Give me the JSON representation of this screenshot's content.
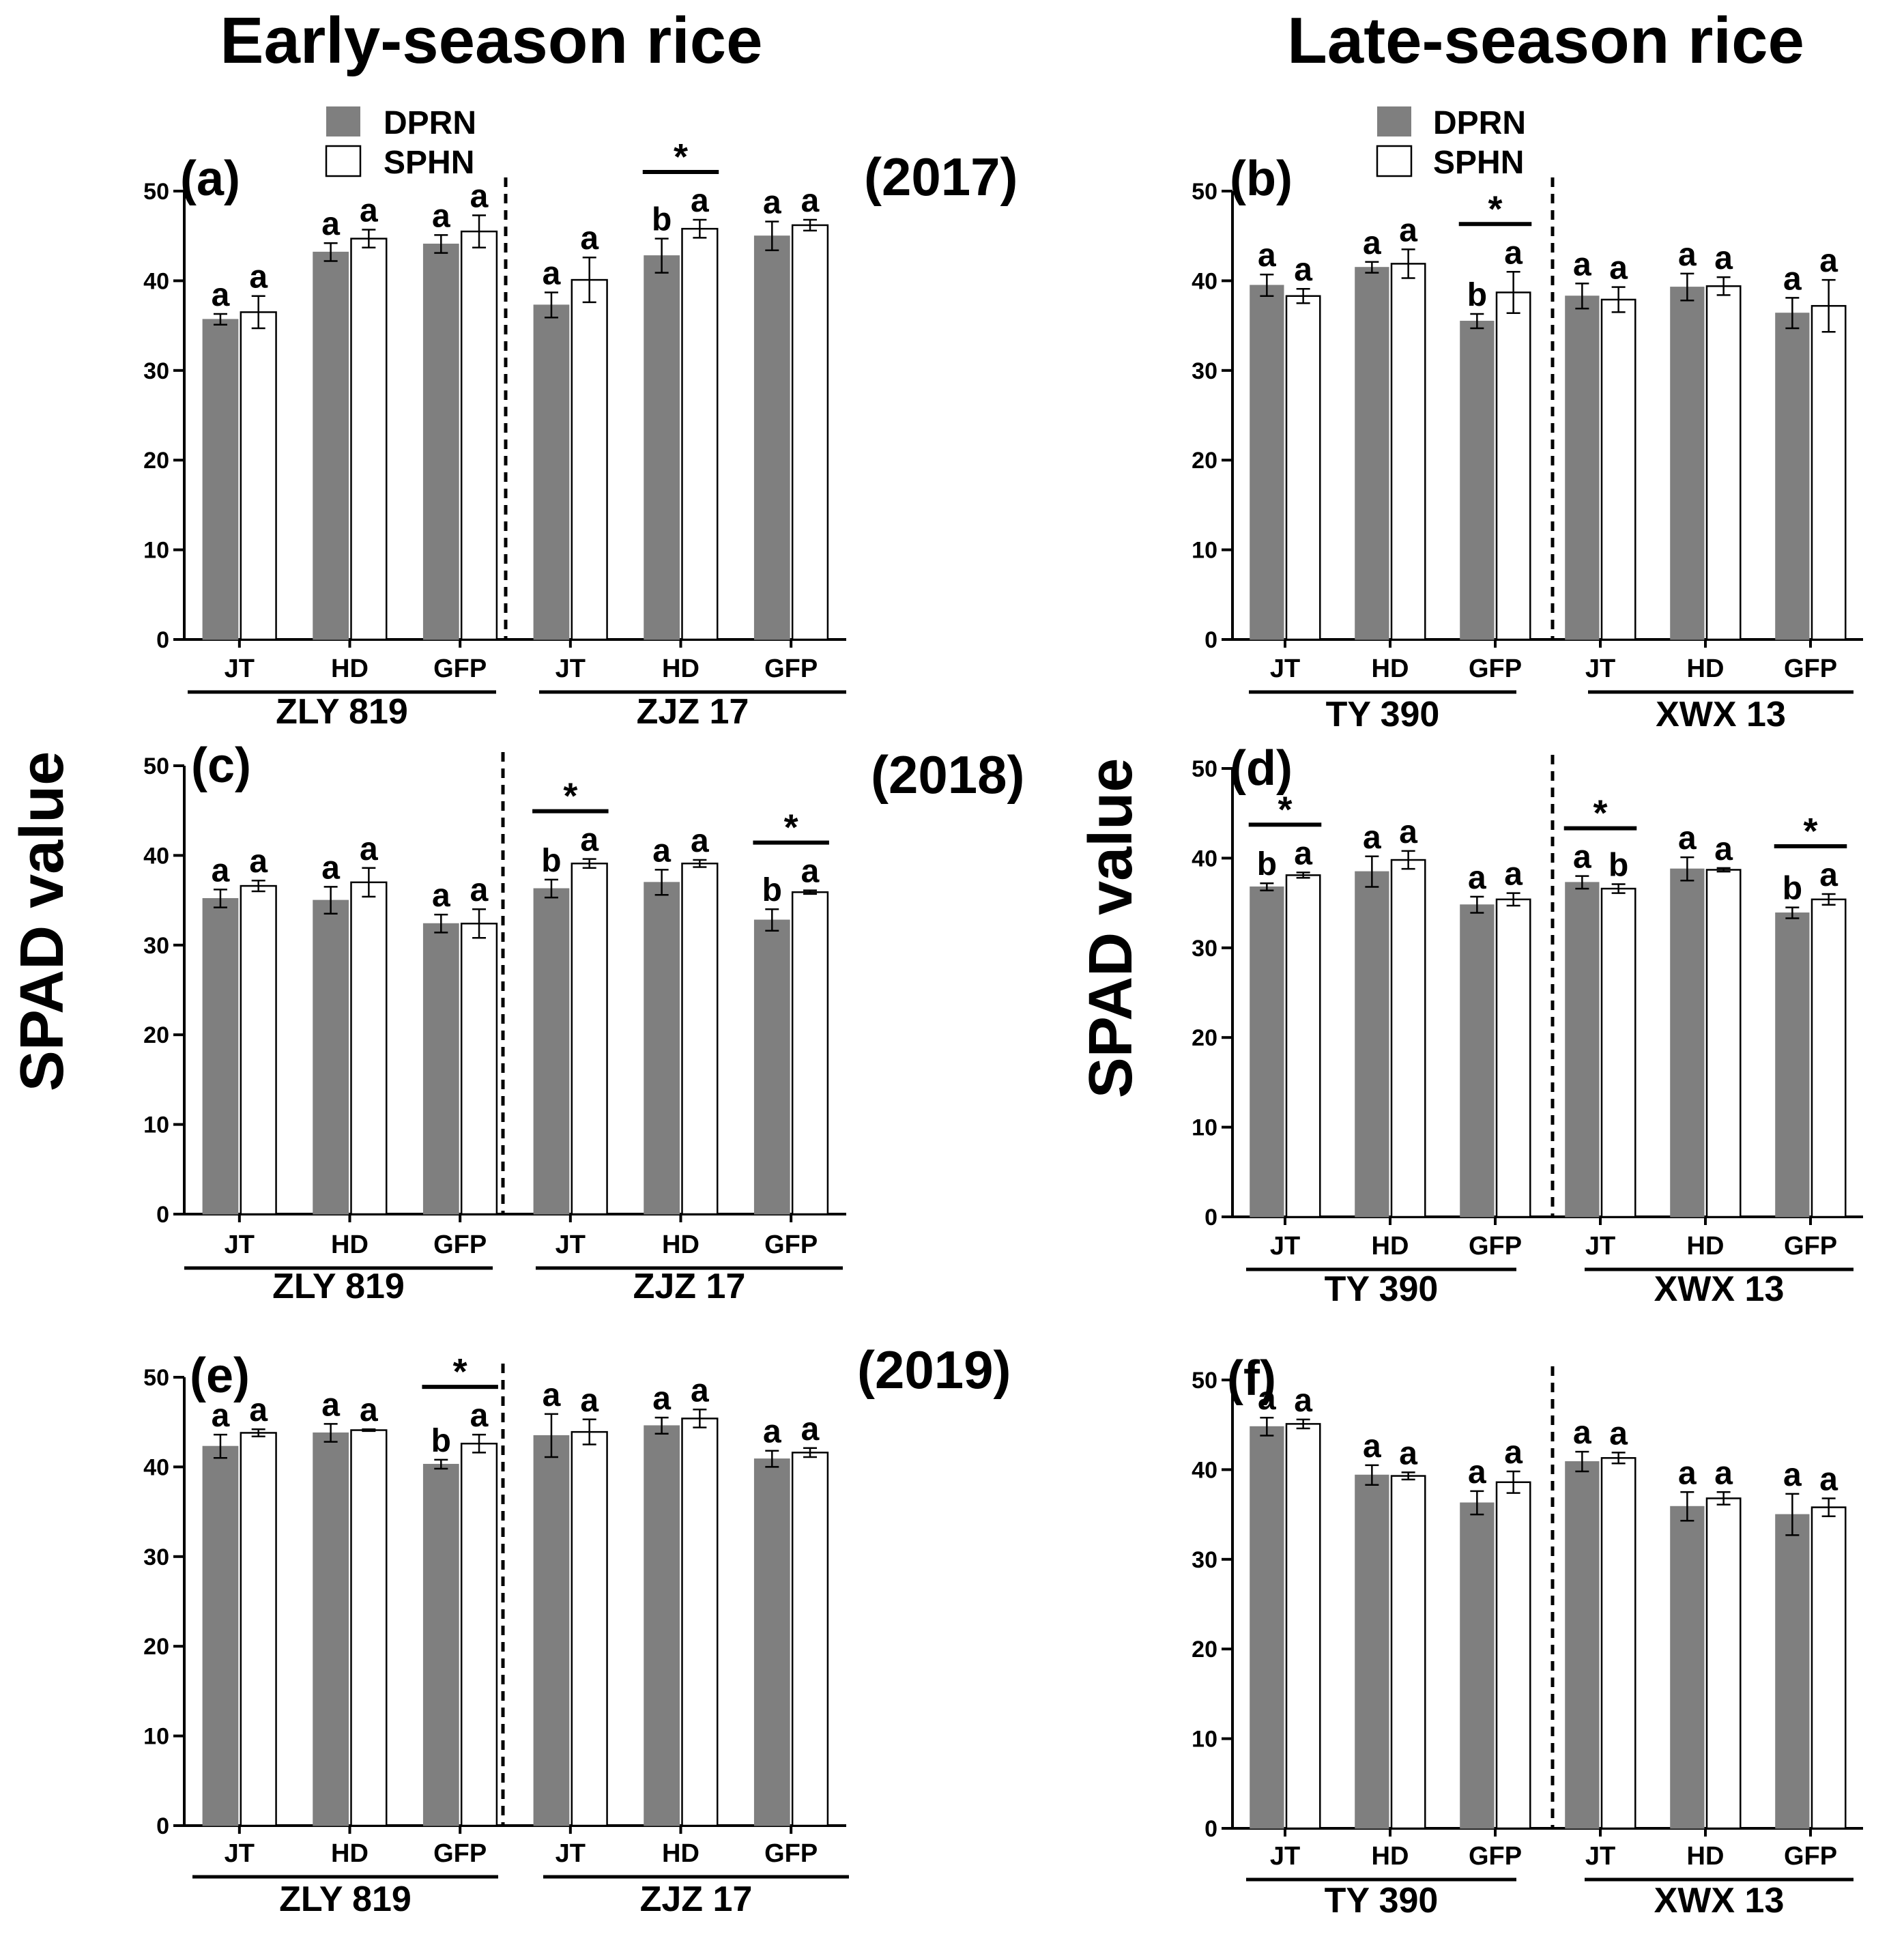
{
  "figure": {
    "titles": {
      "left": "Early-season rice",
      "right": "Late-season rice"
    },
    "y_axis_label": "SPAD value",
    "legend": [
      {
        "label": "DPRN",
        "color": "#7f7f7f"
      },
      {
        "label": "SPHN",
        "color": "#ffffff"
      }
    ],
    "years": [
      "(2017)",
      "(2018)",
      "(2019)"
    ],
    "colors": {
      "dprn": "#7f7f7f",
      "sphn": "#ffffff",
      "axis": "#000000"
    }
  },
  "chart_data": [
    {
      "panel": "(a)",
      "type": "bar",
      "season": "Early-season rice",
      "year": "(2017)",
      "ylim": [
        0,
        50
      ],
      "yticks": [
        0,
        10,
        20,
        30,
        40,
        50
      ],
      "categories": [
        "JT",
        "HD",
        "GFP",
        "JT",
        "HD",
        "GFP"
      ],
      "cultivars": [
        "ZLY 819",
        "ZJZ 17"
      ],
      "series": [
        {
          "name": "DPRN",
          "values": [
            35.7,
            43.2,
            44.1,
            37.3,
            42.8,
            45.0
          ],
          "errors": [
            0.6,
            1.0,
            1.0,
            1.4,
            1.9,
            1.6
          ],
          "letters": [
            "a",
            "a",
            "a",
            "a",
            "b",
            "a"
          ]
        },
        {
          "name": "SPHN",
          "values": [
            36.5,
            44.7,
            45.5,
            40.1,
            45.8,
            46.2
          ],
          "errors": [
            1.8,
            1.0,
            1.8,
            2.5,
            1.0,
            0.6
          ],
          "letters": [
            "a",
            "a",
            "a",
            "a",
            "a",
            "a"
          ]
        }
      ],
      "significant": [
        4
      ]
    },
    {
      "panel": "(b)",
      "type": "bar",
      "season": "Late-season rice",
      "year": "(2017)",
      "ylim": [
        0,
        50
      ],
      "yticks": [
        0,
        10,
        20,
        30,
        40,
        50
      ],
      "categories": [
        "JT",
        "HD",
        "GFP",
        "JT",
        "HD",
        "GFP"
      ],
      "cultivars": [
        "TY 390",
        "XWX 13"
      ],
      "series": [
        {
          "name": "DPRN",
          "values": [
            39.5,
            41.5,
            35.5,
            38.3,
            39.3,
            36.4
          ],
          "errors": [
            1.2,
            0.6,
            0.8,
            1.4,
            1.5,
            1.7
          ],
          "letters": [
            "a",
            "a",
            "b",
            "a",
            "a",
            "a"
          ]
        },
        {
          "name": "SPHN",
          "values": [
            38.3,
            41.9,
            38.7,
            37.9,
            39.4,
            37.2
          ],
          "errors": [
            0.8,
            1.6,
            2.3,
            1.4,
            1.0,
            2.9
          ],
          "letters": [
            "a",
            "a",
            "a",
            "a",
            "a",
            "a"
          ]
        }
      ],
      "significant": [
        2
      ]
    },
    {
      "panel": "(c)",
      "type": "bar",
      "season": "Early-season rice",
      "year": "(2018)",
      "ylim": [
        0,
        50
      ],
      "yticks": [
        0,
        10,
        20,
        30,
        40,
        50
      ],
      "categories": [
        "JT",
        "HD",
        "GFP",
        "JT",
        "HD",
        "GFP"
      ],
      "cultivars": [
        "ZLY 819",
        "ZJZ 17"
      ],
      "series": [
        {
          "name": "DPRN",
          "values": [
            35.2,
            35.0,
            32.4,
            36.3,
            37.0,
            32.8
          ],
          "errors": [
            1.0,
            1.5,
            1.0,
            1.0,
            1.4,
            1.2
          ],
          "letters": [
            "a",
            "a",
            "a",
            "b",
            "a",
            "b"
          ]
        },
        {
          "name": "SPHN",
          "values": [
            36.6,
            37.0,
            32.4,
            39.1,
            39.1,
            35.9
          ],
          "errors": [
            0.6,
            1.6,
            1.6,
            0.5,
            0.4,
            0.2
          ],
          "letters": [
            "a",
            "a",
            "a",
            "a",
            "a",
            "a"
          ]
        }
      ],
      "significant": [
        3,
        5
      ]
    },
    {
      "panel": "(d)",
      "type": "bar",
      "season": "Late-season rice",
      "year": "(2018)",
      "ylim": [
        0,
        50
      ],
      "yticks": [
        0,
        10,
        20,
        30,
        40,
        50
      ],
      "categories": [
        "JT",
        "HD",
        "GFP",
        "JT",
        "HD",
        "GFP"
      ],
      "cultivars": [
        "TY 390",
        "XWX 13"
      ],
      "series": [
        {
          "name": "DPRN",
          "values": [
            36.8,
            38.5,
            34.8,
            37.3,
            38.8,
            33.9
          ],
          "errors": [
            0.4,
            1.7,
            0.9,
            0.7,
            1.3,
            0.6
          ],
          "letters": [
            "b",
            "a",
            "a",
            "a",
            "a",
            "b"
          ]
        },
        {
          "name": "SPHN",
          "values": [
            38.1,
            39.8,
            35.4,
            36.6,
            38.7,
            35.4
          ],
          "errors": [
            0.3,
            1.0,
            0.7,
            0.5,
            0.2,
            0.6
          ],
          "letters": [
            "a",
            "a",
            "a",
            "b",
            "a",
            "a"
          ]
        }
      ],
      "significant": [
        0,
        3,
        5
      ]
    },
    {
      "panel": "(e)",
      "type": "bar",
      "season": "Early-season rice",
      "year": "(2019)",
      "ylim": [
        0,
        50
      ],
      "yticks": [
        0,
        10,
        20,
        30,
        40,
        50
      ],
      "categories": [
        "JT",
        "HD",
        "GFP",
        "JT",
        "HD",
        "GFP"
      ],
      "cultivars": [
        "ZLY 819",
        "ZJZ 17"
      ],
      "series": [
        {
          "name": "DPRN",
          "values": [
            42.3,
            43.8,
            40.3,
            43.5,
            44.6,
            40.9
          ],
          "errors": [
            1.3,
            1.0,
            0.5,
            2.4,
            0.9,
            0.9
          ],
          "letters": [
            "a",
            "a",
            "b",
            "a",
            "a",
            "a"
          ]
        },
        {
          "name": "SPHN",
          "values": [
            43.8,
            44.1,
            42.6,
            43.9,
            45.4,
            41.6
          ],
          "errors": [
            0.4,
            0.1,
            1.0,
            1.4,
            1.0,
            0.5
          ],
          "letters": [
            "a",
            "a",
            "a",
            "a",
            "a",
            "a"
          ]
        }
      ],
      "significant": [
        2
      ]
    },
    {
      "panel": "(f)",
      "type": "bar",
      "season": "Late-season rice",
      "year": "(2019)",
      "ylim": [
        0,
        50
      ],
      "yticks": [
        0,
        10,
        20,
        30,
        40,
        50
      ],
      "categories": [
        "JT",
        "HD",
        "GFP",
        "JT",
        "HD",
        "GFP"
      ],
      "cultivars": [
        "TY 390",
        "XWX 13"
      ],
      "series": [
        {
          "name": "DPRN",
          "values": [
            44.8,
            39.4,
            36.3,
            40.9,
            35.9,
            35.0
          ],
          "errors": [
            1.0,
            1.1,
            1.3,
            1.1,
            1.6,
            2.3
          ],
          "letters": [
            "a",
            "a",
            "a",
            "a",
            "a",
            "a"
          ]
        },
        {
          "name": "SPHN",
          "values": [
            45.1,
            39.3,
            38.6,
            41.3,
            36.8,
            35.8
          ],
          "errors": [
            0.5,
            0.4,
            1.2,
            0.6,
            0.7,
            1.0
          ],
          "letters": [
            "a",
            "a",
            "a",
            "a",
            "a",
            "a"
          ]
        }
      ],
      "significant": []
    }
  ]
}
